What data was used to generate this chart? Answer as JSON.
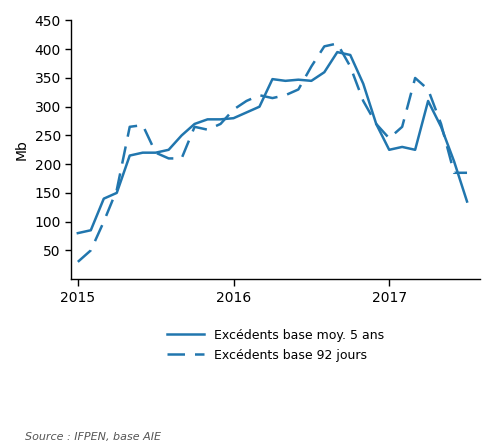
{
  "ylabel": "Mb",
  "source_text": "Source : IFPEN, base AIE",
  "line_color": "#2176AE",
  "ylim": [
    0,
    450
  ],
  "yticks": [
    50,
    100,
    150,
    200,
    250,
    300,
    350,
    400,
    450
  ],
  "xtick_labels": [
    "2015",
    "2016",
    "2017"
  ],
  "legend": [
    "Excédents base moy. 5 ans",
    "Excédents base 92 jours"
  ],
  "solid_x": [
    0,
    1,
    2,
    3,
    4,
    5,
    6,
    7,
    8,
    9,
    10,
    11,
    12,
    13,
    14,
    15,
    16,
    17,
    18,
    19,
    20,
    21,
    22,
    23,
    24,
    25,
    26,
    27,
    28,
    29,
    30
  ],
  "solid_y": [
    80,
    85,
    140,
    150,
    215,
    220,
    220,
    225,
    250,
    270,
    278,
    278,
    280,
    290,
    300,
    348,
    345,
    347,
    345,
    360,
    395,
    390,
    340,
    270,
    225,
    230,
    225,
    310,
    265,
    205,
    135
  ],
  "dashed_x": [
    0,
    1,
    2,
    3,
    4,
    5,
    6,
    7,
    8,
    9,
    10,
    11,
    12,
    13,
    14,
    15,
    16,
    17,
    18,
    19,
    20,
    21,
    22,
    23,
    24,
    25,
    26,
    27,
    28,
    29,
    30
  ],
  "dashed_y": [
    30,
    50,
    100,
    155,
    265,
    268,
    220,
    210,
    210,
    265,
    260,
    270,
    295,
    310,
    320,
    315,
    320,
    330,
    370,
    405,
    410,
    370,
    310,
    270,
    245,
    265,
    350,
    330,
    270,
    185,
    185
  ],
  "x_tick_positions": [
    0,
    12,
    24
  ],
  "xlim": [
    -0.5,
    31
  ],
  "figsize": [
    4.95,
    4.44
  ],
  "dpi": 100
}
